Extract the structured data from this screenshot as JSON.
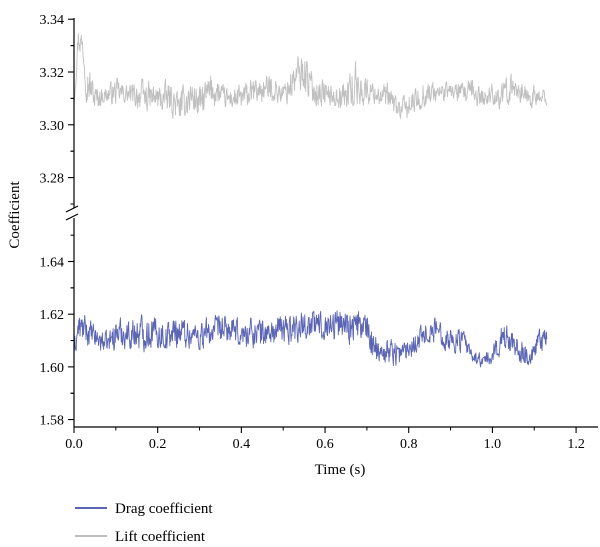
{
  "chart_data": {
    "type": "line",
    "xlabel": "Time (s)",
    "ylabel": "Coefficient",
    "xlim": [
      0,
      1.25
    ],
    "x_ticks": [
      "0.0",
      "0.2",
      "0.4",
      "0.6",
      "0.8",
      "1.0",
      "1.2"
    ],
    "axis_break": true,
    "panels": [
      {
        "name": "upper",
        "ylim": [
          3.27,
          3.345
        ],
        "y_ticks": [
          "3.28",
          "3.30",
          "3.32",
          "3.34"
        ]
      },
      {
        "name": "lower",
        "ylim": [
          1.573,
          1.655
        ],
        "y_ticks": [
          "1.58",
          "1.60",
          "1.62",
          "1.64"
        ]
      }
    ],
    "series": [
      {
        "name": "Lift coefficient",
        "color": "#c0c0c0",
        "panel": "upper",
        "x_range": [
          0.0,
          1.13
        ],
        "envelope": [
          [
            0.0,
            3.305,
            3.318
          ],
          [
            0.01,
            3.325,
            3.342
          ],
          [
            0.02,
            3.322,
            3.338
          ],
          [
            0.03,
            3.305,
            3.33
          ],
          [
            0.05,
            3.302,
            3.318
          ],
          [
            0.07,
            3.306,
            3.316
          ],
          [
            0.1,
            3.305,
            3.32
          ],
          [
            0.13,
            3.306,
            3.317
          ],
          [
            0.16,
            3.302,
            3.32
          ],
          [
            0.2,
            3.302,
            3.318
          ],
          [
            0.23,
            3.3,
            3.32
          ],
          [
            0.25,
            3.298,
            3.315
          ],
          [
            0.28,
            3.3,
            3.322
          ],
          [
            0.3,
            3.298,
            3.318
          ],
          [
            0.33,
            3.303,
            3.324
          ],
          [
            0.36,
            3.304,
            3.316
          ],
          [
            0.4,
            3.302,
            3.318
          ],
          [
            0.43,
            3.305,
            3.32
          ],
          [
            0.47,
            3.306,
            3.322
          ],
          [
            0.5,
            3.305,
            3.318
          ],
          [
            0.53,
            3.306,
            3.33
          ],
          [
            0.55,
            3.308,
            3.333
          ],
          [
            0.57,
            3.304,
            3.322
          ],
          [
            0.6,
            3.304,
            3.32
          ],
          [
            0.62,
            3.305,
            3.316
          ],
          [
            0.65,
            3.302,
            3.32
          ],
          [
            0.67,
            3.3,
            3.33
          ],
          [
            0.69,
            3.304,
            3.322
          ],
          [
            0.72,
            3.306,
            3.318
          ],
          [
            0.75,
            3.302,
            3.318
          ],
          [
            0.78,
            3.299,
            3.312
          ],
          [
            0.81,
            3.3,
            3.316
          ],
          [
            0.84,
            3.304,
            3.32
          ],
          [
            0.87,
            3.306,
            3.318
          ],
          [
            0.9,
            3.308,
            3.318
          ],
          [
            0.93,
            3.305,
            3.318
          ],
          [
            0.95,
            3.304,
            3.32
          ],
          [
            0.98,
            3.304,
            3.316
          ],
          [
            1.0,
            3.306,
            3.318
          ],
          [
            1.02,
            3.302,
            3.318
          ],
          [
            1.05,
            3.308,
            3.322
          ],
          [
            1.08,
            3.304,
            3.318
          ],
          [
            1.11,
            3.304,
            3.316
          ],
          [
            1.13,
            3.306,
            3.314
          ]
        ]
      },
      {
        "name": "Drag coefficient",
        "color": "#5b65b4",
        "panel": "lower",
        "x_range": [
          0.0,
          1.13
        ],
        "envelope": [
          [
            0.0,
            1.6,
            1.612
          ],
          [
            0.01,
            1.606,
            1.624
          ],
          [
            0.03,
            1.605,
            1.622
          ],
          [
            0.05,
            1.604,
            1.618
          ],
          [
            0.08,
            1.603,
            1.615
          ],
          [
            0.1,
            1.604,
            1.622
          ],
          [
            0.13,
            1.604,
            1.621
          ],
          [
            0.16,
            1.602,
            1.624
          ],
          [
            0.19,
            1.604,
            1.623
          ],
          [
            0.22,
            1.603,
            1.62
          ],
          [
            0.25,
            1.604,
            1.624
          ],
          [
            0.28,
            1.604,
            1.62
          ],
          [
            0.31,
            1.602,
            1.622
          ],
          [
            0.34,
            1.606,
            1.622
          ],
          [
            0.37,
            1.606,
            1.622
          ],
          [
            0.4,
            1.604,
            1.62
          ],
          [
            0.43,
            1.604,
            1.623
          ],
          [
            0.46,
            1.604,
            1.621
          ],
          [
            0.49,
            1.605,
            1.623
          ],
          [
            0.52,
            1.606,
            1.624
          ],
          [
            0.55,
            1.607,
            1.625
          ],
          [
            0.58,
            1.607,
            1.625
          ],
          [
            0.61,
            1.608,
            1.624
          ],
          [
            0.63,
            1.606,
            1.627
          ],
          [
            0.65,
            1.606,
            1.628
          ],
          [
            0.67,
            1.605,
            1.626
          ],
          [
            0.69,
            1.606,
            1.625
          ],
          [
            0.71,
            1.6,
            1.62
          ],
          [
            0.73,
            1.6,
            1.612
          ],
          [
            0.75,
            1.598,
            1.615
          ],
          [
            0.78,
            1.598,
            1.612
          ],
          [
            0.81,
            1.602,
            1.616
          ],
          [
            0.84,
            1.606,
            1.62
          ],
          [
            0.87,
            1.606,
            1.622
          ],
          [
            0.9,
            1.602,
            1.618
          ],
          [
            0.93,
            1.604,
            1.616
          ],
          [
            0.95,
            1.6,
            1.608
          ],
          [
            0.98,
            1.598,
            1.606
          ],
          [
            1.0,
            1.598,
            1.61
          ],
          [
            1.02,
            1.602,
            1.62
          ],
          [
            1.05,
            1.602,
            1.618
          ],
          [
            1.07,
            1.598,
            1.614
          ],
          [
            1.09,
            1.596,
            1.608
          ],
          [
            1.11,
            1.602,
            1.616
          ],
          [
            1.13,
            1.605,
            1.617
          ]
        ]
      }
    ],
    "legend": {
      "position": "bottom-left",
      "entries": [
        "Drag coefficient",
        "Lift coefficient"
      ]
    }
  }
}
